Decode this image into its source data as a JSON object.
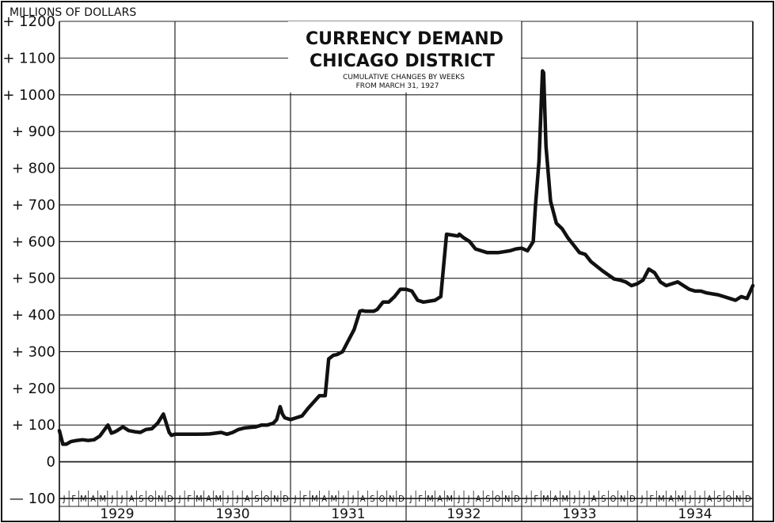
{
  "chart_data": {
    "type": "line",
    "title": "CURRENCY DEMAND",
    "title_line2": "CHICAGO DISTRICT",
    "subtitle": "CUMULATIVE CHANGES BY WEEKS",
    "subtitle_line2": "FROM MARCH 31, 1927",
    "ylabel": "MILLIONS OF DOLLARS",
    "ylim": [
      -100,
      1200
    ],
    "y_ticks": [
      -100,
      0,
      100,
      200,
      300,
      400,
      500,
      600,
      700,
      800,
      900,
      1000,
      1100,
      1200
    ],
    "y_tick_labels": [
      "— 100",
      "0",
      "+ 100",
      "+ 200",
      "+ 300",
      "+ 400",
      "+ 500",
      "+ 600",
      "+ 700",
      "+ 800",
      "+ 900",
      "+ 1000",
      "+ 1100",
      "+ 1200"
    ],
    "years": [
      "1929",
      "1930",
      "1931",
      "1932",
      "1933",
      "1934"
    ],
    "months": [
      "J",
      "F",
      "M",
      "A",
      "M",
      "J",
      "J",
      "A",
      "S",
      "O",
      "N",
      "D"
    ],
    "xlim": [
      1929.0,
      1935.0
    ],
    "grid": true,
    "line_color": "#111111",
    "series": [
      {
        "x": [
          1929.0,
          1929.03,
          1929.06,
          1929.1,
          1929.15,
          1929.2,
          1929.25,
          1929.3,
          1929.35,
          1929.42,
          1929.45,
          1929.47,
          1929.5,
          1929.55,
          1929.6,
          1929.65,
          1929.7,
          1929.75,
          1929.8,
          1929.85,
          1929.9,
          1929.92,
          1929.95,
          1929.97,
          1930.0,
          1930.1,
          1930.2,
          1930.3,
          1930.4,
          1930.45,
          1930.5,
          1930.55,
          1930.6,
          1930.7,
          1930.75,
          1930.8,
          1930.85,
          1930.88,
          1930.91,
          1930.93,
          1930.95,
          1931.0,
          1931.05,
          1931.1,
          1931.15,
          1931.25,
          1931.28,
          1931.3,
          1931.33,
          1931.37,
          1931.4,
          1931.42,
          1931.45,
          1931.5,
          1931.55,
          1931.6,
          1931.62,
          1931.65,
          1931.72,
          1931.75,
          1931.8,
          1931.85,
          1931.9,
          1931.95,
          1932.0,
          1932.05,
          1932.1,
          1932.15,
          1932.25,
          1932.3,
          1932.35,
          1932.45,
          1932.46,
          1932.5,
          1932.55,
          1932.6,
          1932.7,
          1932.8,
          1932.9,
          1932.95,
          1933.0,
          1933.05,
          1933.1,
          1933.12,
          1933.15,
          1933.18,
          1933.19,
          1933.21,
          1933.25,
          1933.3,
          1933.35,
          1933.4,
          1933.45,
          1933.5,
          1933.55,
          1933.6,
          1933.7,
          1933.8,
          1933.85,
          1933.9,
          1933.95,
          1934.0,
          1934.05,
          1934.1,
          1934.15,
          1934.2,
          1934.25,
          1934.35,
          1934.45,
          1934.5,
          1934.55,
          1934.6,
          1934.7,
          1934.75,
          1934.8,
          1934.85,
          1934.9,
          1934.95,
          1935.0
        ],
        "values": [
          85,
          48,
          48,
          55,
          58,
          60,
          58,
          60,
          70,
          100,
          78,
          80,
          85,
          95,
          85,
          82,
          80,
          88,
          90,
          105,
          130,
          110,
          80,
          72,
          75,
          75,
          75,
          76,
          80,
          75,
          80,
          88,
          92,
          95,
          100,
          100,
          105,
          115,
          150,
          130,
          120,
          115,
          120,
          125,
          145,
          180,
          180,
          180,
          280,
          290,
          292,
          295,
          300,
          330,
          360,
          410,
          412,
          410,
          410,
          415,
          435,
          435,
          450,
          470,
          470,
          465,
          440,
          435,
          440,
          450,
          620,
          615,
          620,
          610,
          600,
          580,
          570,
          570,
          575,
          580,
          582,
          575,
          600,
          700,
          820,
          1065,
          1060,
          860,
          710,
          650,
          635,
          610,
          590,
          570,
          565,
          545,
          520,
          498,
          495,
          490,
          480,
          485,
          495,
          525,
          515,
          490,
          480,
          490,
          470,
          465,
          465,
          460,
          455,
          450,
          445,
          440,
          450,
          445,
          480
        ]
      }
    ]
  }
}
